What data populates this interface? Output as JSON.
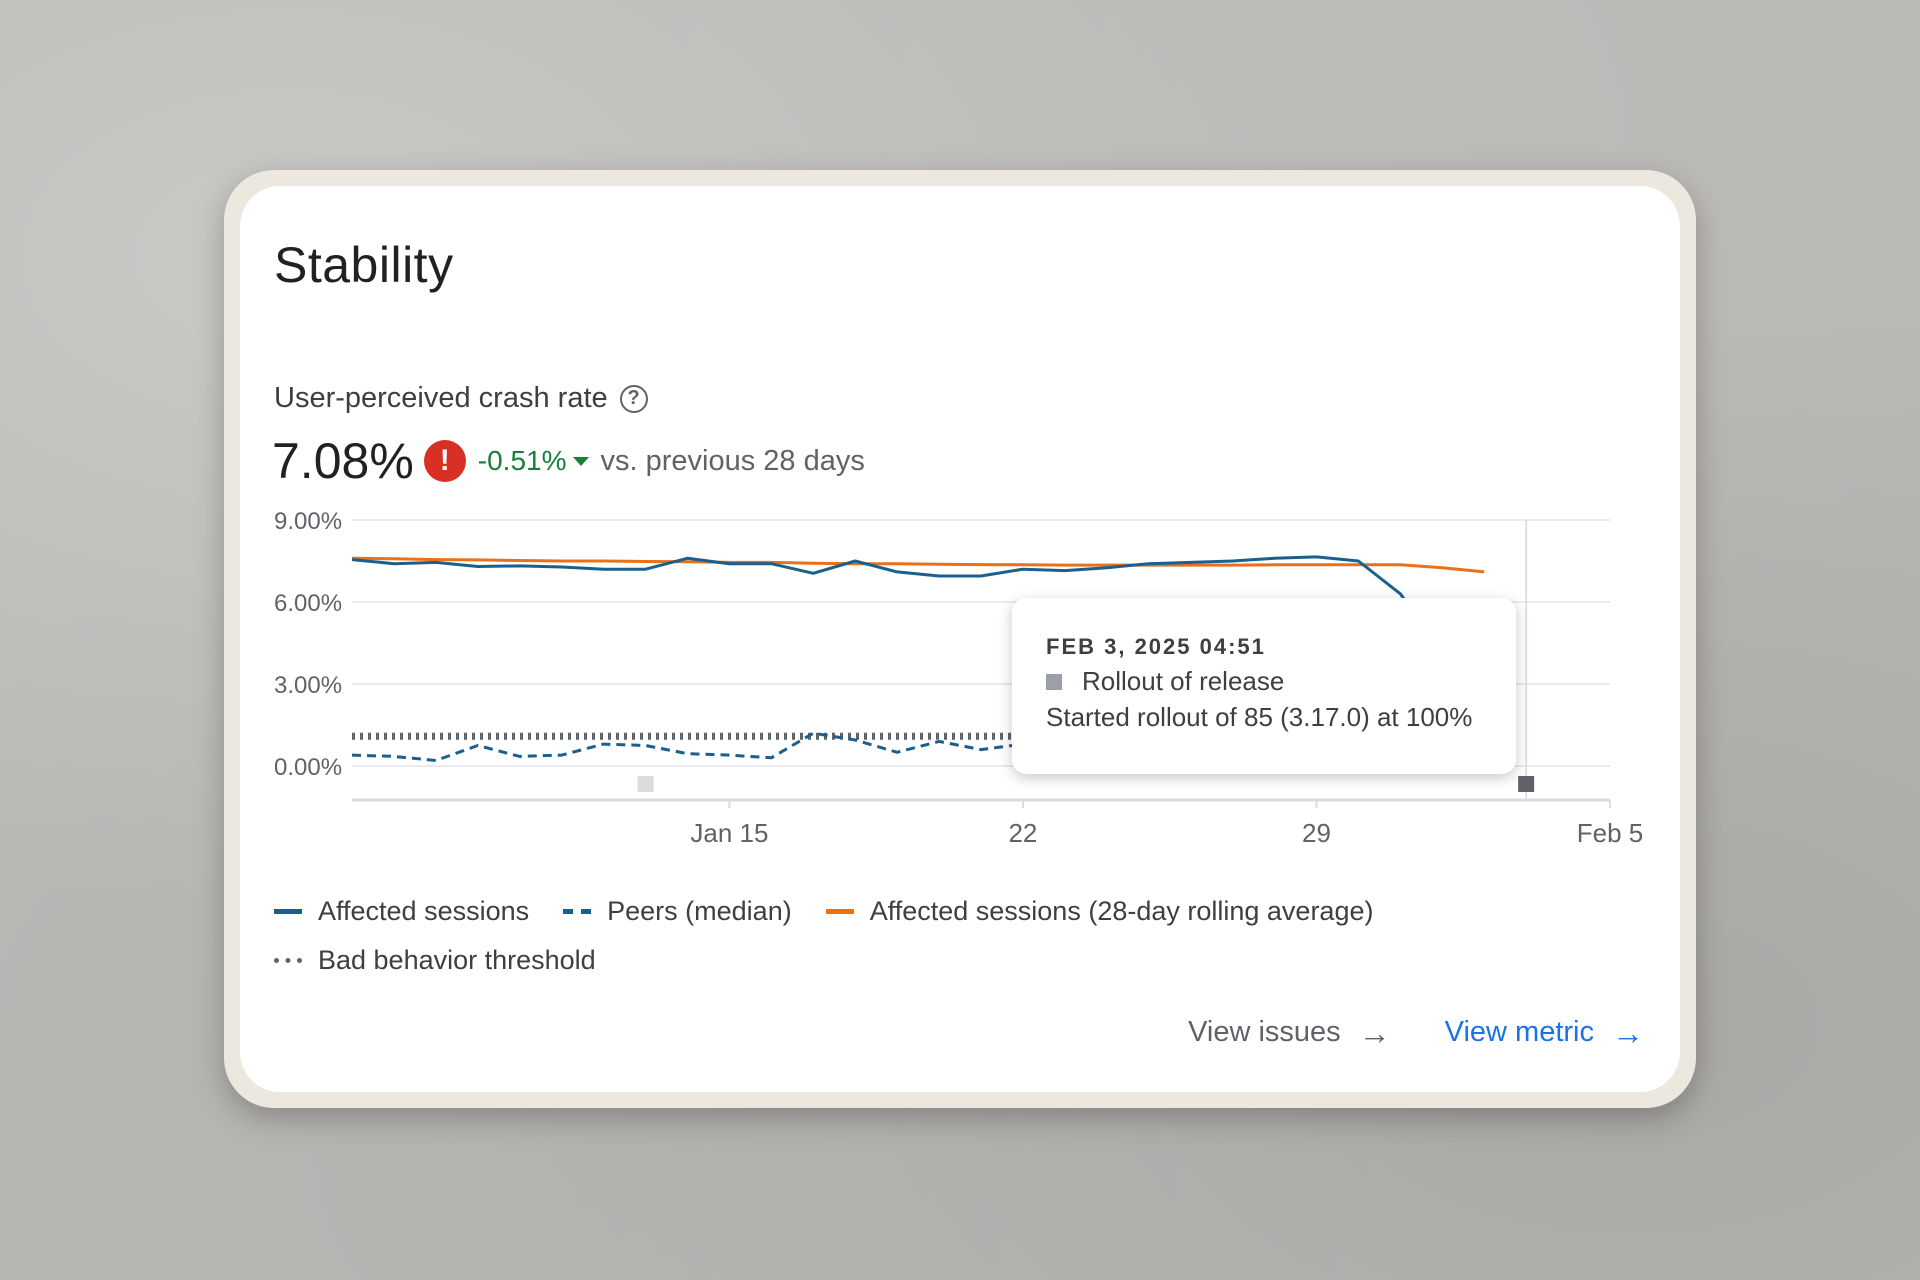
{
  "card": {
    "title": "Stability",
    "metric_label": "User-perceived crash rate",
    "metric_value": "7.08%",
    "delta": "-0.51%",
    "compare": "vs. previous 28 days"
  },
  "tooltip": {
    "date": "FEB 3, 2025 04:51",
    "title": "Rollout of release",
    "description": "Started rollout of 85 (3.17.0) at 100%"
  },
  "legend": [
    {
      "label": "Affected sessions",
      "color": "#1a5f8e",
      "style": "solid"
    },
    {
      "label": "Peers (median)",
      "color": "#1a5f8e",
      "style": "dashed"
    },
    {
      "label": "Affected sessions (28-day rolling average)",
      "color": "#e8711a",
      "style": "solid"
    },
    {
      "label": "Bad behavior threshold",
      "color": "#5f6368",
      "style": "dotted"
    }
  ],
  "actions": {
    "view_issues": "View issues",
    "view_metric": "View metric"
  },
  "chart_data": {
    "type": "line",
    "x": [
      "2025-01-06",
      "2025-01-07",
      "2025-01-08",
      "2025-01-09",
      "2025-01-10",
      "2025-01-11",
      "2025-01-12",
      "2025-01-13",
      "2025-01-14",
      "2025-01-15",
      "2025-01-16",
      "2025-01-17",
      "2025-01-18",
      "2025-01-19",
      "2025-01-20",
      "2025-01-21",
      "2025-01-22",
      "2025-01-23",
      "2025-01-24",
      "2025-01-25",
      "2025-01-26",
      "2025-01-27",
      "2025-01-28",
      "2025-01-29",
      "2025-01-30",
      "2025-01-31",
      "2025-02-01",
      "2025-02-02",
      "2025-02-03",
      "2025-02-04",
      "2025-02-05"
    ],
    "x_ticks": [
      "Jan 15",
      "22",
      "29",
      "Feb 5"
    ],
    "y_ticks": [
      "9.00%",
      "6.00%",
      "3.00%",
      "0.00%"
    ],
    "ylim": [
      0,
      9
    ],
    "series": [
      {
        "name": "Affected sessions",
        "values": [
          7.55,
          7.4,
          7.45,
          7.3,
          7.32,
          7.28,
          7.2,
          7.2,
          7.6,
          7.4,
          7.4,
          7.05,
          7.5,
          7.1,
          6.95,
          6.95,
          7.2,
          7.15,
          7.25,
          7.4,
          7.45,
          7.5,
          7.6,
          7.65,
          7.5,
          6.3,
          4.2,
          3.2,
          null,
          null,
          null
        ]
      },
      {
        "name": "Peers (median)",
        "values": [
          0.4,
          0.35,
          0.2,
          0.75,
          0.35,
          0.4,
          0.8,
          0.75,
          0.45,
          0.4,
          0.3,
          1.2,
          0.95,
          0.5,
          0.9,
          0.6,
          0.8,
          0.7,
          0.8,
          0.6,
          0.7,
          0.75,
          0.8,
          0.85,
          0.8,
          1.0,
          0.45,
          0.8,
          null,
          null,
          null
        ]
      },
      {
        "name": "Affected sessions (28-day rolling average)",
        "values": [
          7.6,
          7.58,
          7.55,
          7.54,
          7.52,
          7.5,
          7.5,
          7.48,
          7.47,
          7.45,
          7.45,
          7.42,
          7.4,
          7.4,
          7.38,
          7.37,
          7.36,
          7.35,
          7.35,
          7.35,
          7.35,
          7.35,
          7.36,
          7.36,
          7.36,
          7.36,
          7.25,
          7.1,
          null,
          null,
          null
        ]
      },
      {
        "name": "Bad behavior threshold",
        "values": [
          1.09,
          1.09,
          1.09,
          1.09,
          1.09,
          1.09,
          1.09,
          1.09,
          1.09,
          1.09,
          1.09,
          1.09,
          1.09,
          1.09,
          1.09,
          1.09,
          1.09,
          1.09,
          1.09,
          1.09,
          1.09,
          1.09,
          1.09,
          1.09,
          1.09,
          1.09,
          1.09,
          1.09,
          null,
          null,
          null
        ]
      }
    ]
  }
}
